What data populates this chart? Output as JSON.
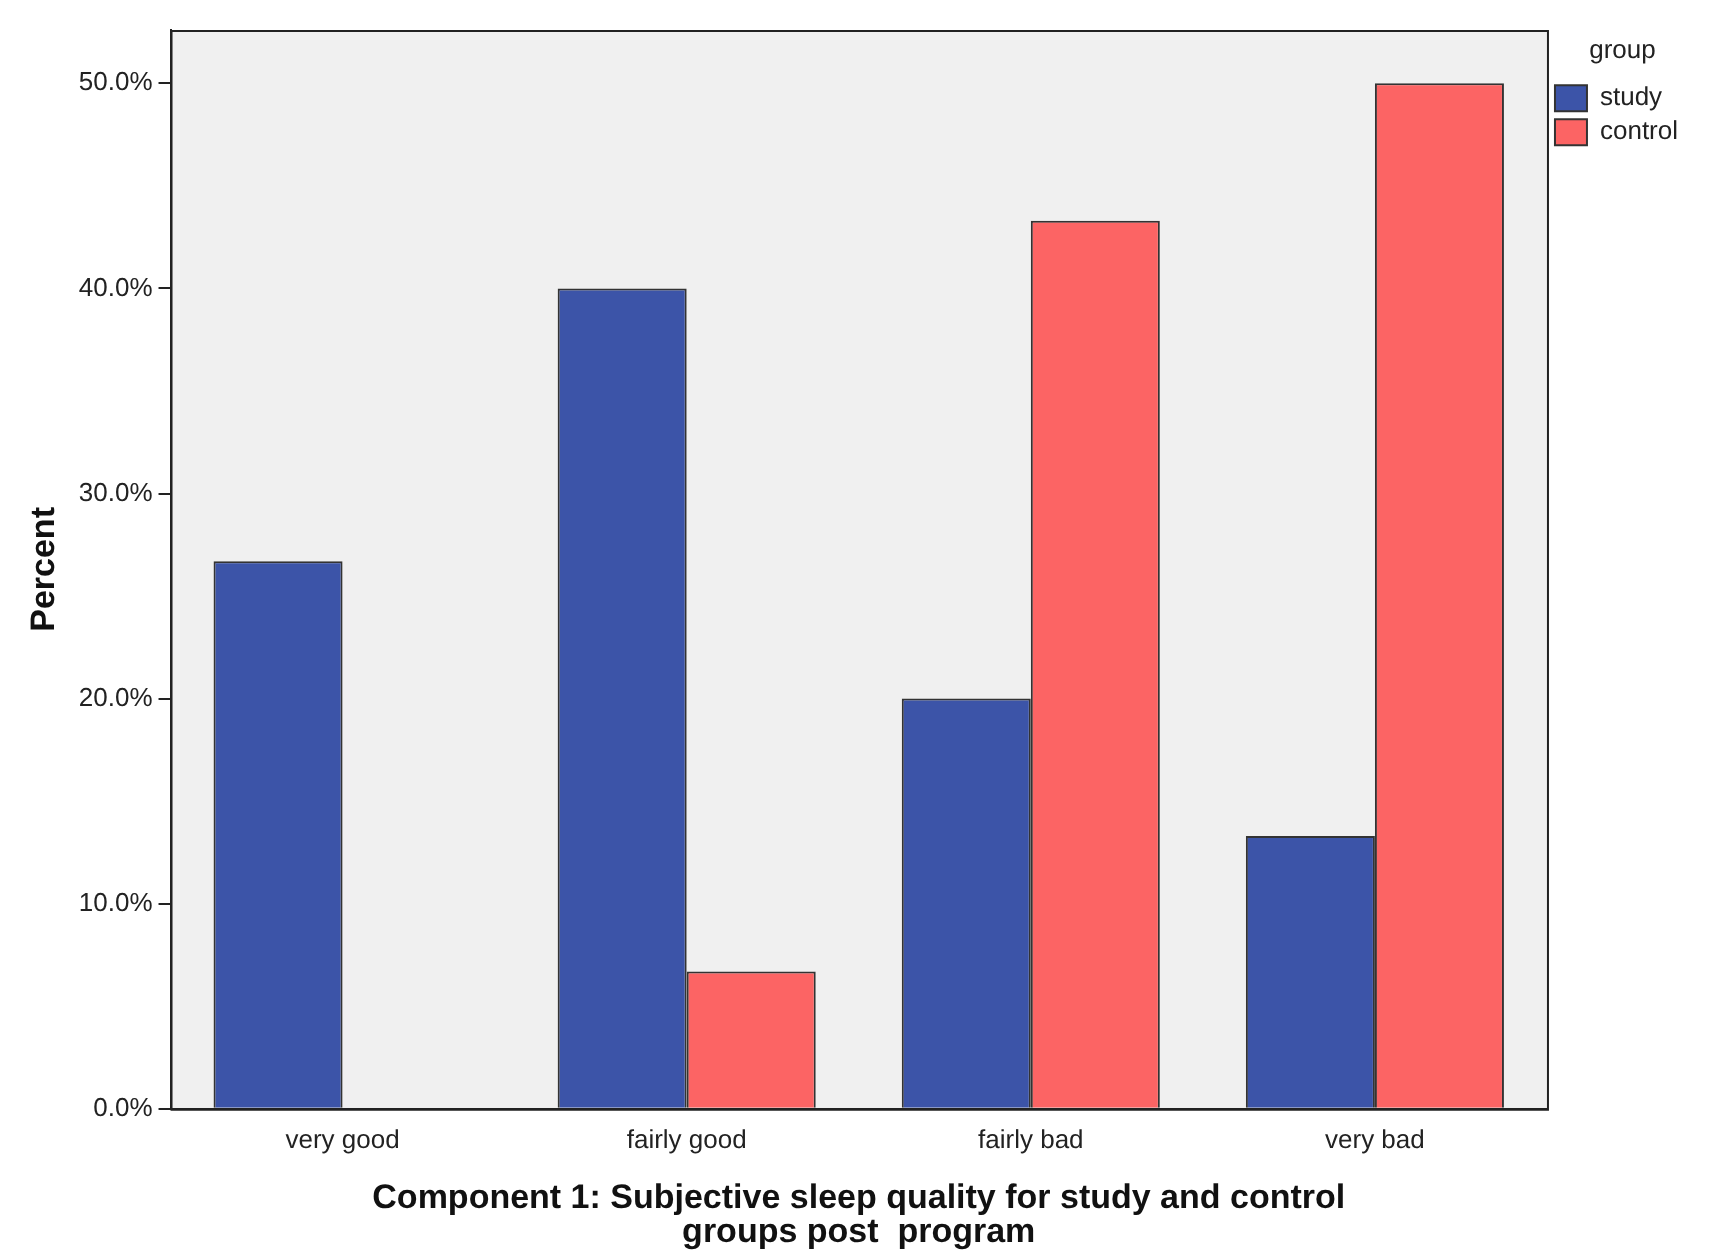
{
  "chart_data": {
    "type": "bar",
    "xlabel": "Component 1: Subjective sleep quality for study and control groups post  program",
    "ylabel": "Percent",
    "legend_title": "group",
    "categories": [
      "very good",
      "fairly good",
      "fairly bad",
      "very bad"
    ],
    "series": [
      {
        "name": "study",
        "color": "#3c54a8",
        "values": [
          26.7,
          40,
          20,
          13.3
        ]
      },
      {
        "name": "control",
        "color": "#fc6464",
        "values": [
          0,
          6.7,
          43.3,
          50
        ]
      }
    ],
    "ylim": [
      0,
      52.6
    ],
    "yticks": [
      {
        "value": 0,
        "label": "0.0%"
      },
      {
        "value": 10,
        "label": "10.0%"
      },
      {
        "value": 20,
        "label": "20.0%"
      },
      {
        "value": 30,
        "label": "30.0%"
      },
      {
        "value": 40,
        "label": "40.0%"
      },
      {
        "value": 50,
        "label": "50.0%"
      }
    ],
    "grid": false,
    "legend": "top right"
  }
}
